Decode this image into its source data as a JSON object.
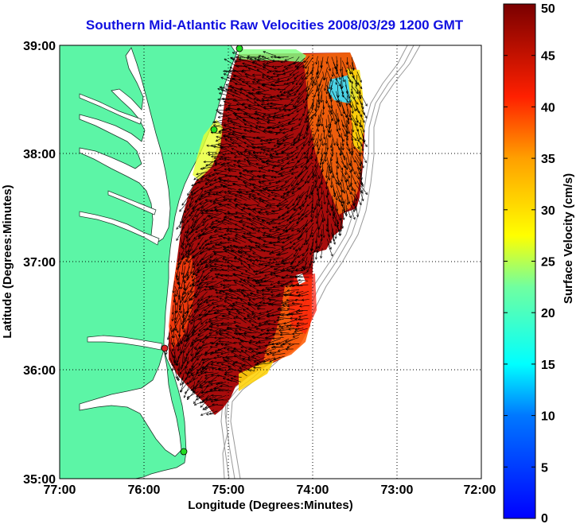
{
  "title": "Southern Mid-Atlantic Raw Velocities 2008/03/29 1200 GMT",
  "x_axis": {
    "label": "Longitude (Degrees:Minutes)",
    "ticks": [
      "77:00",
      "76:00",
      "75:00",
      "74:00",
      "73:00",
      "72:00"
    ]
  },
  "y_axis": {
    "label": "Latitude (Degrees:Minutes)",
    "ticks": [
      "39:00",
      "38:00",
      "37:00",
      "36:00",
      "35:00"
    ]
  },
  "colorbar": {
    "label": "Surface Velocity (cm/s)",
    "min": 0,
    "max": 50,
    "ticks": [
      "0",
      "5",
      "10",
      "15",
      "20",
      "25",
      "30",
      "35",
      "40",
      "45",
      "50"
    ],
    "colormap": "jet"
  },
  "map": {
    "lon_range": [
      -77,
      -72
    ],
    "lat_range": [
      35,
      39
    ],
    "land_color": "#5cf5a6",
    "grid_style": "dotted",
    "vector_color": "#000000",
    "site_marker_colors": [
      "#22dd22",
      "#dd2222"
    ]
  }
}
